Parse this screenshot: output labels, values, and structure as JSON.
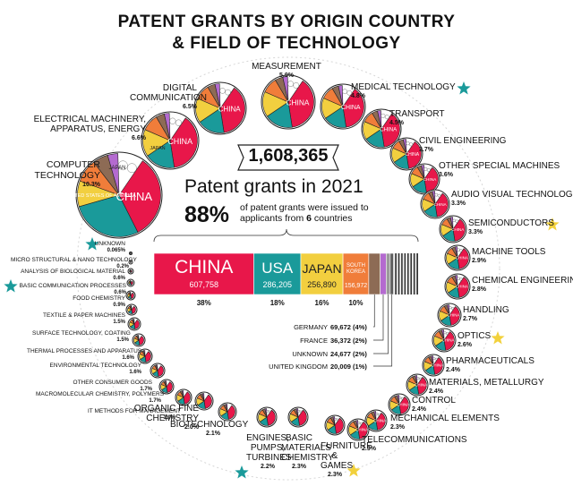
{
  "title_line1": "PATENT GRANTS BY ORIGIN COUNTRY",
  "title_line2": "& FIELD OF TECHNOLOGY",
  "total": "1,608,365",
  "headline": "Patent grants in 2021",
  "share_pct": "88%",
  "share_text_a": "of patent grants were issued to",
  "share_text_b": "applicants from",
  "share_count": "6",
  "share_text_c": "countries",
  "chart_data": {
    "type": "bar",
    "title": "PATENT GRANTS BY ORIGIN COUNTRY & FIELD OF TECHNOLOGY",
    "total_grants": 1608365,
    "year": 2021,
    "stacked_bar": [
      {
        "name": "CHINA",
        "value": 607758,
        "value_label": "607,758",
        "pct_label": "38%",
        "color": "#e8174a"
      },
      {
        "name": "USA",
        "value": 286205,
        "value_label": "286,205",
        "pct_label": "18%",
        "color": "#1a9a9a"
      },
      {
        "name": "JAPAN",
        "value": 256890,
        "value_label": "256,890",
        "pct_label": "16%",
        "color": "#f2cf3f"
      },
      {
        "name": "SOUTH KOREA",
        "value": 156972,
        "value_label": "156,972",
        "pct_label": "10%",
        "color": "#f07d3a"
      },
      {
        "name": "GERMANY",
        "value": 69672,
        "value_label": "69,672",
        "pct_label": "(4%)",
        "color": "#8d6b55"
      },
      {
        "name": "FRANCE",
        "value": 36372,
        "value_label": "36,372",
        "pct_label": "(2%)",
        "color": "#b46ad0"
      },
      {
        "name": "UNKNOWN",
        "value": 24677,
        "value_label": "24,677",
        "pct_label": "(2%)",
        "color": "#9a9a9a"
      },
      {
        "name": "UNITED KINGDOM",
        "value": 20009,
        "value_label": "20,009",
        "pct_label": "(1%)",
        "color": "#5d5d5d"
      }
    ],
    "fields": [
      {
        "name": "COMPUTER TECHNOLOGY",
        "pct": 10.3,
        "pct_label": "10.3%",
        "starred": false
      },
      {
        "name": "ELECTRICAL MACHINERY, APPARATUS, ENERGY",
        "pct": 6.6,
        "pct_label": "6.6%",
        "starred": false
      },
      {
        "name": "DIGITAL COMMUNICATION",
        "pct": 6.5,
        "pct_label": "6.5%",
        "starred": false
      },
      {
        "name": "MEASUREMENT",
        "pct": 5.9,
        "pct_label": "5.9%",
        "starred": false
      },
      {
        "name": "MEDICAL TECHNOLOGY",
        "pct": 4.8,
        "pct_label": "4.8%",
        "starred": true,
        "star_color": "teal"
      },
      {
        "name": "TRANSPORT",
        "pct": 4.5,
        "pct_label": "4.5%",
        "starred": false
      },
      {
        "name": "CIVIL ENGINEERING",
        "pct": 3.7,
        "pct_label": "3.7%",
        "starred": false
      },
      {
        "name": "OTHER SPECIAL MACHINES",
        "pct": 3.6,
        "pct_label": "3.6%",
        "starred": false
      },
      {
        "name": "AUDIO VISUAL TECHNOLOGY",
        "pct": 3.3,
        "pct_label": "3.3%",
        "starred": false
      },
      {
        "name": "SEMICONDUCTORS",
        "pct": 3.3,
        "pct_label": "3.3%",
        "starred": true,
        "star_color": "yellow"
      },
      {
        "name": "MACHINE TOOLS",
        "pct": 2.9,
        "pct_label": "2.9%",
        "starred": false
      },
      {
        "name": "CHEMICAL ENGINEERING",
        "pct": 2.8,
        "pct_label": "2.8%",
        "starred": false
      },
      {
        "name": "HANDLING",
        "pct": 2.7,
        "pct_label": "2.7%",
        "starred": false
      },
      {
        "name": "OPTICS",
        "pct": 2.6,
        "pct_label": "2.6%",
        "starred": true,
        "star_color": "yellow"
      },
      {
        "name": "PHARMACEUTICALS",
        "pct": 2.4,
        "pct_label": "2.4%",
        "starred": false
      },
      {
        "name": "MATERIALS, METALLURGY",
        "pct": 2.4,
        "pct_label": "2.4%",
        "starred": false
      },
      {
        "name": "CONTROL",
        "pct": 2.4,
        "pct_label": "2.4%",
        "starred": false
      },
      {
        "name": "MECHANICAL ELEMENTS",
        "pct": 2.3,
        "pct_label": "2.3%",
        "starred": false
      },
      {
        "name": "TELECOMMUNICATIONS",
        "pct": 2.3,
        "pct_label": "2.3%",
        "starred": false
      },
      {
        "name": "FURNITURE & GAMES",
        "pct": 2.3,
        "pct_label": "2.3%",
        "starred": true,
        "star_color": "yellow"
      },
      {
        "name": "BASIC MATERIALS CHEMISTRY",
        "pct": 2.3,
        "pct_label": "2.3%",
        "starred": false
      },
      {
        "name": "ENGINES, PUMPS, TURBINES",
        "pct": 2.2,
        "pct_label": "2.2%",
        "starred": true,
        "star_color": "teal"
      },
      {
        "name": "BIOTECHNOLOGY",
        "pct": 2.1,
        "pct_label": "2.1%",
        "starred": false
      },
      {
        "name": "ORGANIC FINE CHEMISTRY",
        "pct": 2.0,
        "pct_label": "2.0%",
        "starred": false
      },
      {
        "name": "IT METHODS FOR MANAGEMENT",
        "pct": 1.9,
        "pct_label": "1.9%",
        "starred": false
      },
      {
        "name": "MACROMOLECULAR CHEMISTRY, POLYMERS",
        "pct": 1.7,
        "pct_label": "1.7%",
        "starred": false
      },
      {
        "name": "OTHER CONSUMER GOODS",
        "pct": 1.7,
        "pct_label": "1.7%",
        "starred": false
      },
      {
        "name": "ENVIRONMENTAL TECHNOLOGY",
        "pct": 1.6,
        "pct_label": "1.6%",
        "starred": false
      },
      {
        "name": "THERMAL PROCESSES AND APPARATUS",
        "pct": 1.6,
        "pct_label": "1.6%",
        "starred": false
      },
      {
        "name": "SURFACE TECHNOLOGY, COATING",
        "pct": 1.5,
        "pct_label": "1.5%",
        "starred": false
      },
      {
        "name": "TEXTILE & PAPER MACHINES",
        "pct": 1.5,
        "pct_label": "1.5%",
        "starred": false
      },
      {
        "name": "FOOD CHEMISTRY",
        "pct": 0.9,
        "pct_label": "0.9%",
        "starred": false
      },
      {
        "name": "BASIC COMMUNICATION PROCESSES",
        "pct": 0.6,
        "pct_label": "0.6%",
        "starred": true,
        "star_color": "teal"
      },
      {
        "name": "ANALYSIS OF BIOLOGICAL MATERIAL",
        "pct": 0.6,
        "pct_label": "0.6%",
        "starred": false
      },
      {
        "name": "MICRO STRUCTURAL & NANO TECHNOLOGY",
        "pct": 0.2,
        "pct_label": "0.2%",
        "starred": false
      },
      {
        "name": "UNKNOWN",
        "pct": 0.065,
        "pct_label": "0.065%",
        "starred": true,
        "star_color": "teal"
      }
    ],
    "bubble_labels": {
      "china": "CHINA",
      "japan": "JAPAN",
      "usa_full": "UNITED STATES OF AMERICA",
      "usa": "USA",
      "south_korea": "SOUTH KOREA",
      "united_states": "UNITED STATES"
    },
    "colors": {
      "china": "#e8174a",
      "usa": "#1a9a9a",
      "japan": "#f2cf3f",
      "korea": "#f07d3a",
      "germany": "#8d6b55",
      "france": "#b46ad0",
      "star_teal": "#1a9a9a",
      "star_yellow": "#f2d13c"
    }
  }
}
